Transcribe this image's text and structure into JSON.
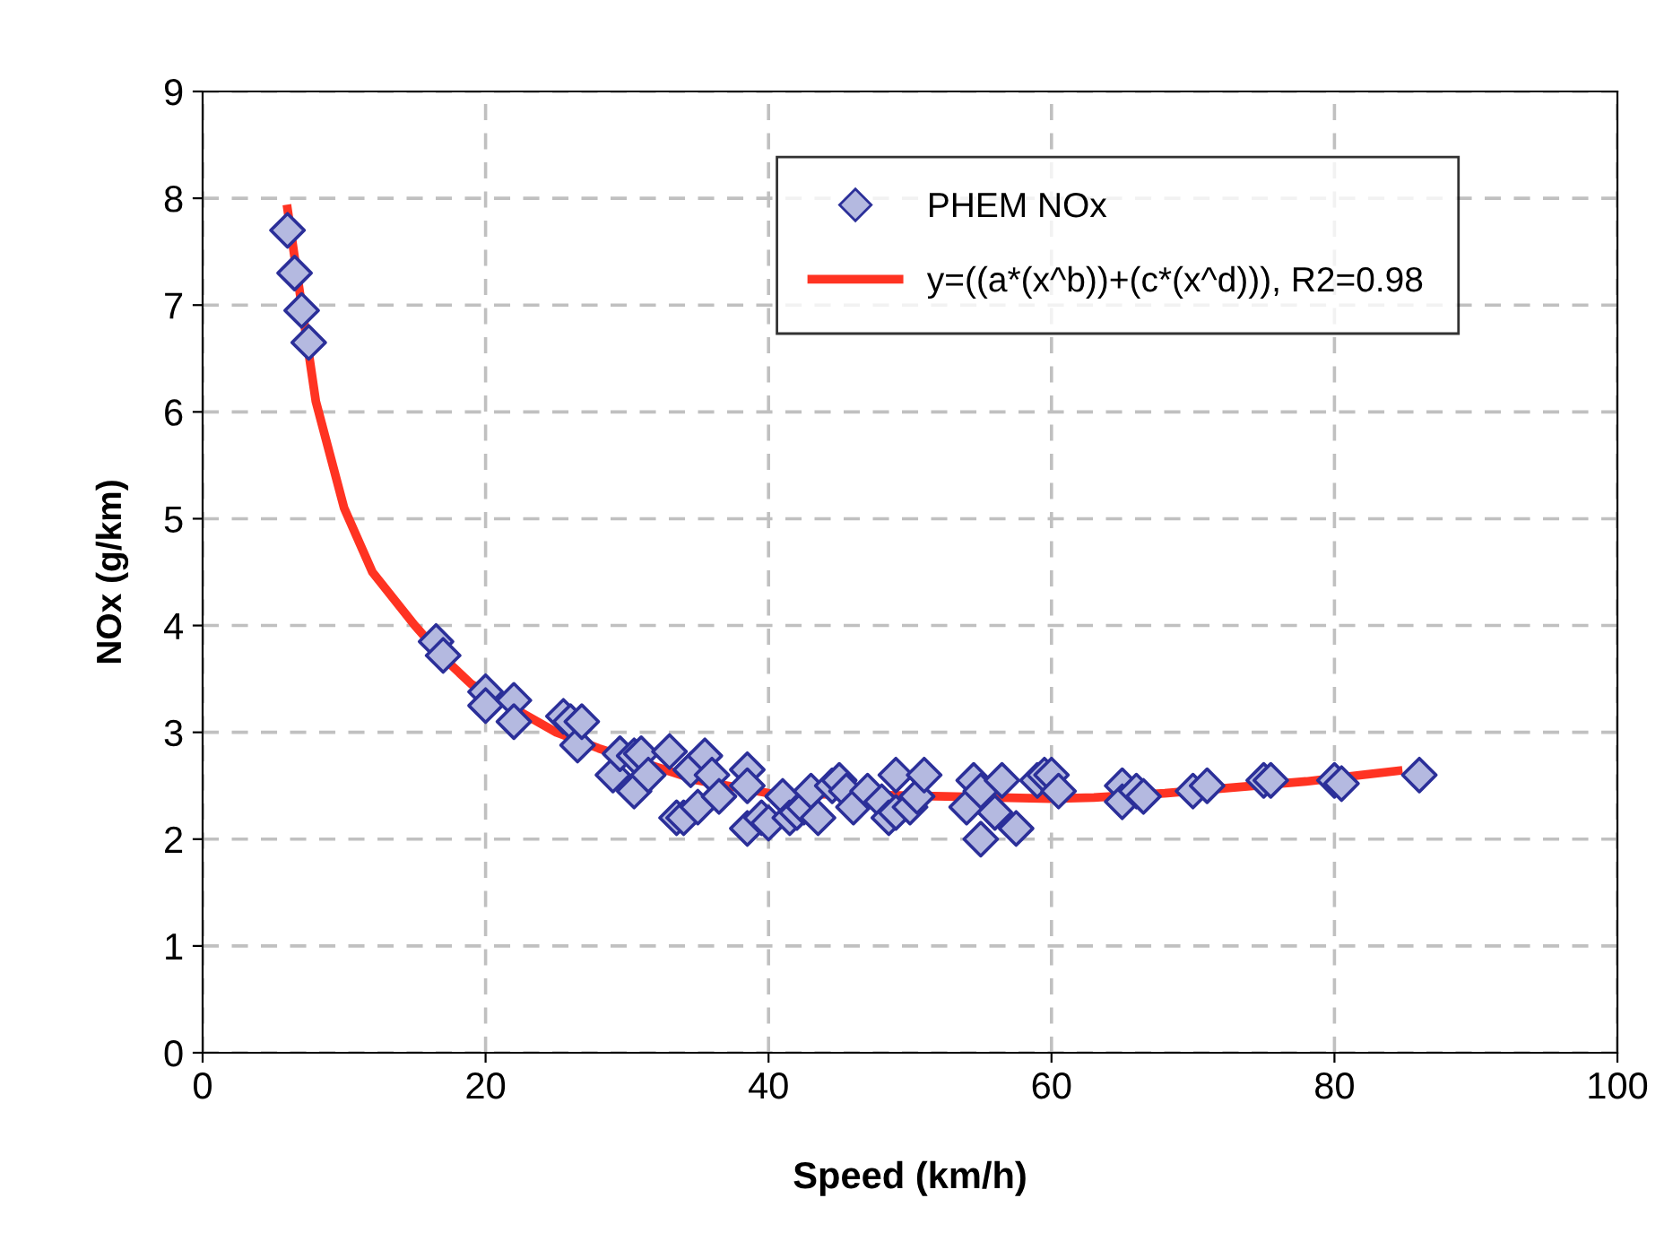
{
  "chart_data": {
    "type": "scatter",
    "xlabel": "Speed (km/h)",
    "ylabel": "NOx (g/km)",
    "xlim": [
      0,
      100
    ],
    "xticks": [
      0,
      20,
      40,
      60,
      80,
      100
    ],
    "ylim": [
      0,
      9
    ],
    "yticks": [
      0,
      1,
      2,
      3,
      4,
      5,
      6,
      7,
      8,
      9
    ],
    "grid": true,
    "legend": "top right",
    "series": [
      {
        "name": "PHEM NOx",
        "marker": "diamond",
        "color": "#b4b9e0",
        "x": [
          6.0,
          6.5,
          7.0,
          7.5,
          16.5,
          17,
          20,
          20,
          22,
          22,
          25.5,
          26,
          26.5,
          26.8,
          29,
          29.5,
          30.5,
          30.5,
          31,
          31.5,
          33,
          33.5,
          34,
          34.5,
          35,
          35.5,
          36,
          36.5,
          38.5,
          38.5,
          38.5,
          39.5,
          40,
          41,
          41.5,
          42,
          42.5,
          43,
          43.5,
          44.5,
          45,
          45.5,
          46,
          47,
          48,
          48.5,
          49,
          49,
          50,
          50.5,
          51,
          54,
          54.5,
          55,
          55,
          56,
          56.5,
          57.5,
          59,
          59.5,
          60,
          60.5,
          65,
          65,
          66,
          66.5,
          70,
          71,
          75,
          75.5,
          80,
          80.5,
          86
        ],
        "values": [
          7.7,
          7.3,
          6.95,
          6.65,
          3.85,
          3.72,
          3.38,
          3.25,
          3.3,
          3.1,
          3.15,
          3.1,
          2.88,
          3.1,
          2.6,
          2.8,
          2.78,
          2.45,
          2.8,
          2.6,
          2.82,
          2.2,
          2.2,
          2.65,
          2.3,
          2.78,
          2.6,
          2.4,
          2.65,
          2.5,
          2.1,
          2.2,
          2.15,
          2.4,
          2.2,
          2.25,
          2.3,
          2.45,
          2.2,
          2.5,
          2.55,
          2.45,
          2.3,
          2.45,
          2.35,
          2.2,
          2.6,
          2.25,
          2.3,
          2.4,
          2.6,
          2.3,
          2.55,
          2.45,
          2.0,
          2.25,
          2.55,
          2.1,
          2.55,
          2.6,
          2.6,
          2.45,
          2.5,
          2.35,
          2.45,
          2.4,
          2.45,
          2.5,
          2.55,
          2.55,
          2.55,
          2.52,
          2.6
        ]
      },
      {
        "name": "y=((a*(x^b))+(c*(x^d))), R2=0.98",
        "type": "line",
        "marker": "none",
        "line_style": "solid",
        "color": "#ff3322",
        "x": [
          6,
          7,
          8,
          10,
          12,
          15,
          17,
          19,
          25,
          28,
          35,
          40,
          52.5,
          60,
          63,
          68,
          78,
          84.5
        ],
        "values": [
          7.9,
          7.0,
          6.1,
          5.1,
          4.5,
          4.0,
          3.7,
          3.45,
          3.0,
          2.85,
          2.55,
          2.43,
          2.4,
          2.38,
          2.39,
          2.43,
          2.54,
          2.64
        ]
      }
    ]
  }
}
